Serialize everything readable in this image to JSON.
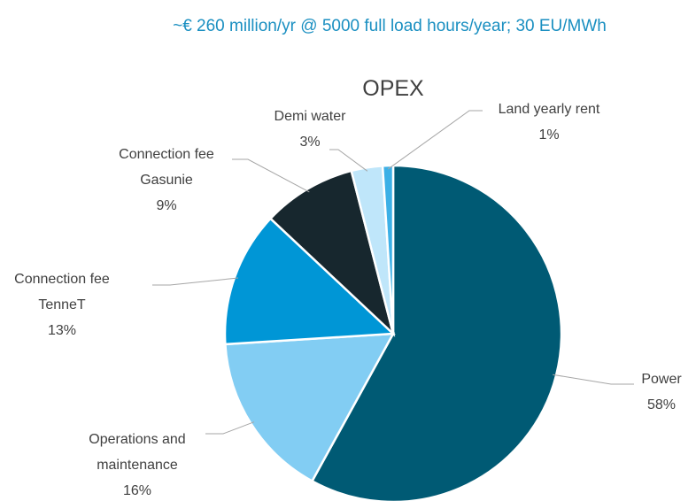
{
  "chart_data": {
    "type": "pie",
    "subtitle": "~€ 260 million/yr @ 5000 full load hours/year; 30 EU/MWh",
    "title": "OPEX",
    "categories": [
      "Power",
      "Operations and maintenance",
      "Connection fee TenneT",
      "Connection fee Gasunie",
      "Demi water",
      "Land yearly rent"
    ],
    "values": [
      58,
      16,
      13,
      9,
      3,
      1
    ],
    "value_labels": [
      "58%",
      "16%",
      "13%",
      "9%",
      "3%",
      "1%"
    ],
    "colors": [
      "#005a74",
      "#82cdf3",
      "#0096d6",
      "#17272e",
      "#bfe6fa",
      "#3cb0e6"
    ]
  }
}
